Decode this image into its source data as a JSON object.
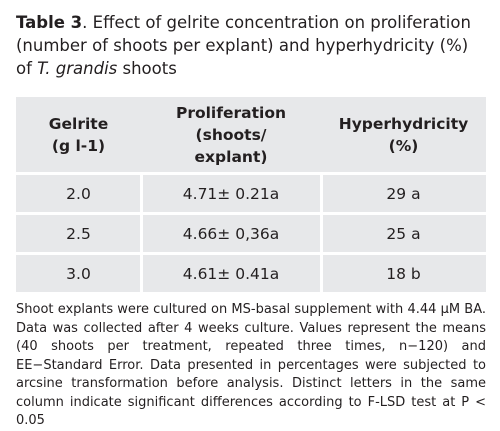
{
  "caption": {
    "label": "Table 3",
    "text_before_species": ". Effect of gelrite concentration on proliferation (number of shoots per explant) and hyperhydricity (%) of ",
    "species": "T. grandis",
    "text_after_species": " shoots"
  },
  "table": {
    "headers": [
      {
        "line1": "Gelrite",
        "line2": "(g l-1)"
      },
      {
        "line1": "Proliferation (shoots/",
        "line2": "explant)"
      },
      {
        "line1": "Hyperhydricity",
        "line2": "(%)"
      }
    ],
    "rows": [
      {
        "gelrite": "2.0",
        "proliferation": "4.71± 0.21a",
        "hyperhydricity": "29 a"
      },
      {
        "gelrite": "2.5",
        "proliferation": "4.66± 0,36a",
        "hyperhydricity": "25 a"
      },
      {
        "gelrite": "3.0",
        "proliferation": "4.61± 0.41a",
        "hyperhydricity": "18 b"
      }
    ]
  },
  "footnote": "Shoot explants were cultured on MS-basal supplement with 4.44 μM BA. Data was collected after 4 weeks culture. Values represent the means (40 shoots per treatment, repeated three times, n−120) and EE−Standard Error. Data presented in percentages were subjected to arcsine transformation before analysis. Distinct letters in the same column indicate significant differences according to F-LSD test at P < 0.05"
}
